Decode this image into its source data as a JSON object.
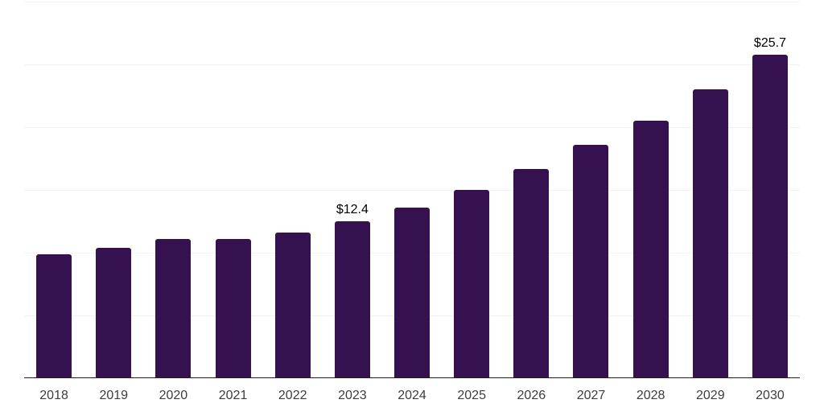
{
  "chart_data": {
    "type": "bar",
    "title": "",
    "xlabel": "",
    "ylabel": "",
    "categories": [
      "2018",
      "2019",
      "2020",
      "2021",
      "2022",
      "2023",
      "2024",
      "2025",
      "2026",
      "2027",
      "2028",
      "2029",
      "2030"
    ],
    "values": [
      9.8,
      10.3,
      11.0,
      11.0,
      11.5,
      12.4,
      13.5,
      14.9,
      16.6,
      18.5,
      20.4,
      22.9,
      25.7
    ],
    "data_labels": [
      "",
      "",
      "",
      "",
      "",
      "$12.4",
      "",
      "",
      "",
      "",
      "",
      "",
      "$25.7"
    ],
    "ylim": [
      0,
      30.1
    ],
    "gridline_values": [
      5,
      10,
      15,
      20,
      25,
      30
    ],
    "grid": "horizontal-only",
    "legend": "none",
    "y_tick_labels_visible": false,
    "colors": {
      "bar": "#361150",
      "gridline": "#f2f2f2",
      "axis_line": "#1f1f1f",
      "x_tick_label": "#3d3d3d",
      "data_label": "#000000",
      "background": "#ffffff"
    }
  }
}
